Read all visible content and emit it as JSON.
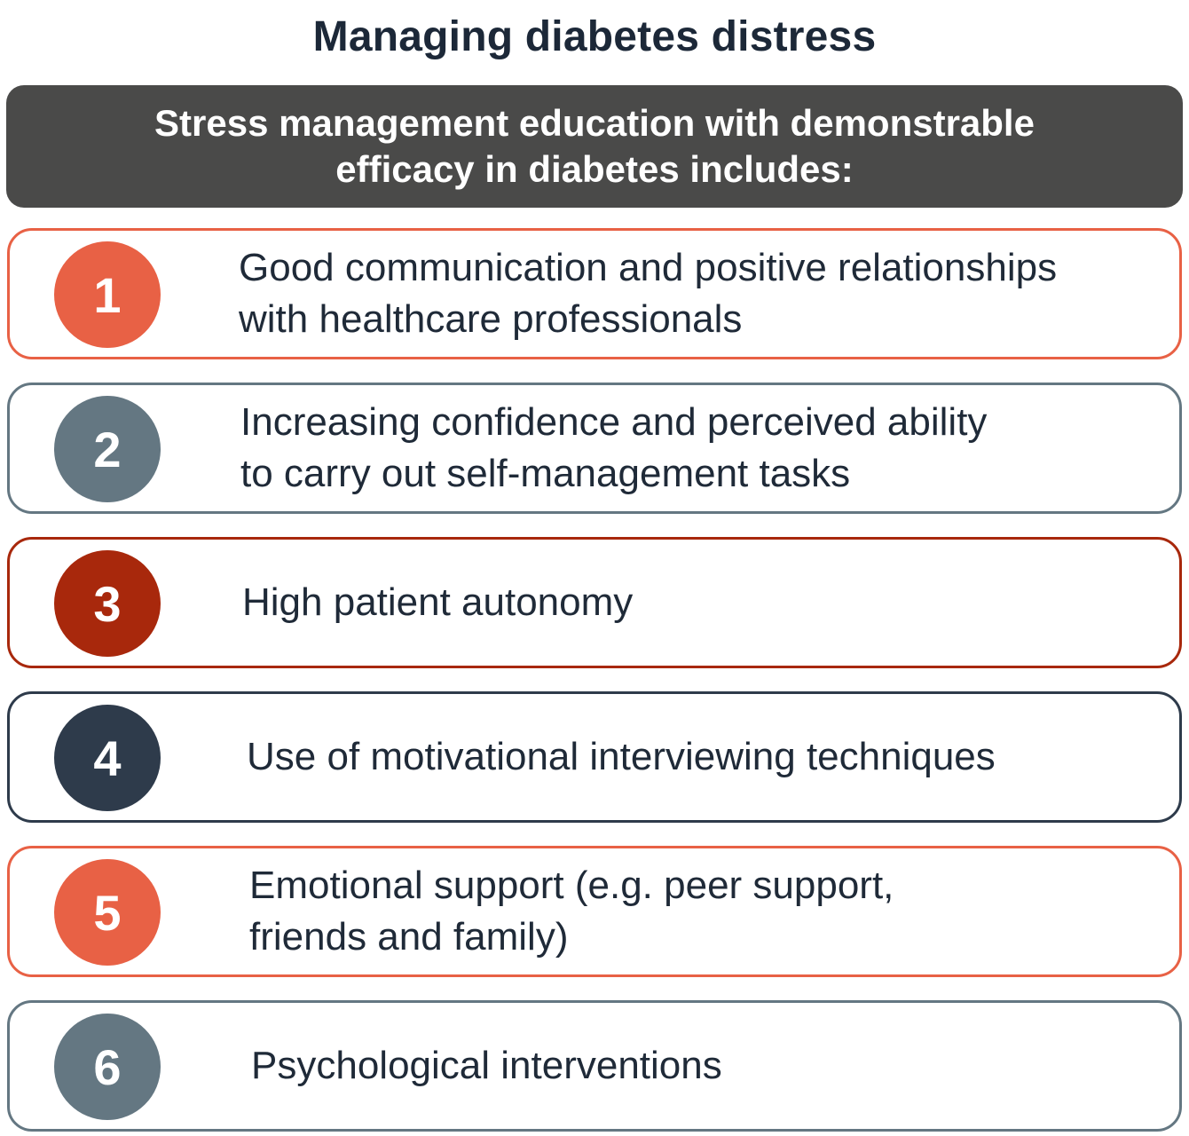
{
  "title": "Managing diabetes distress",
  "header": {
    "text": "Stress management education with demonstrable efficacy in diabetes includes:"
  },
  "items": [
    {
      "number": "1",
      "text": "Good communication and positive relationships with healthcare professionals",
      "border_color": "#e86145",
      "badge_color": "#e86145"
    },
    {
      "number": "2",
      "text": "Increasing confidence and perceived ability to carry out self-management tasks",
      "border_color": "#647782",
      "badge_color": "#647782"
    },
    {
      "number": "3",
      "text": "High patient autonomy",
      "border_color": "#a8280c",
      "badge_color": "#a8280c"
    },
    {
      "number": "4",
      "text": "Use of motivational interviewing techniques",
      "border_color": "#2e3b4b",
      "badge_color": "#2e3b4b"
    },
    {
      "number": "5",
      "text": "Emotional support (e.g. peer support, friends and family)",
      "border_color": "#e86145",
      "badge_color": "#e86145"
    },
    {
      "number": "6",
      "text": "Psychological interventions",
      "border_color": "#647782",
      "badge_color": "#647782"
    }
  ]
}
